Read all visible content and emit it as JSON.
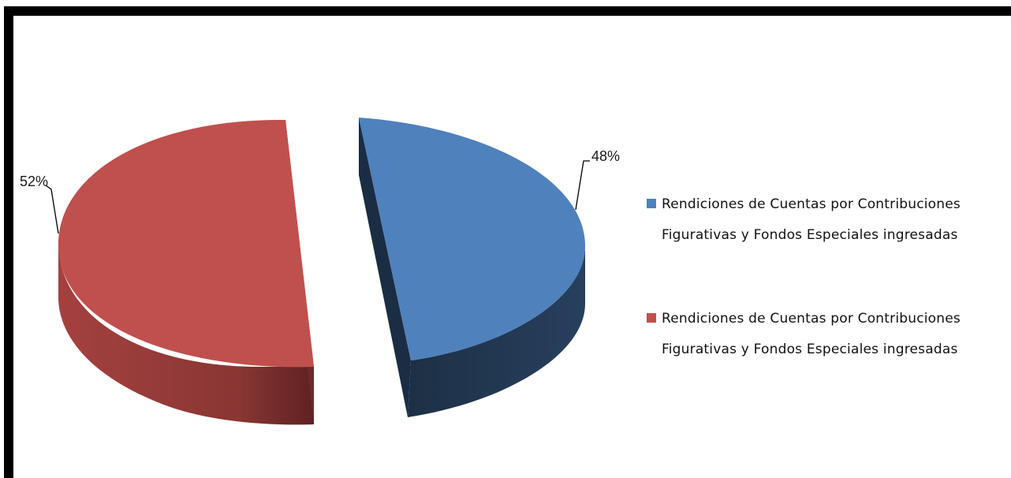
{
  "chart_data": {
    "type": "pie",
    "style": "3d-exploded",
    "slices": [
      {
        "label": "Rendiciones de Cuentas por Contribuciones Figurativas y Fondos Especiales ingresadas",
        "value": 48,
        "value_label": "48%",
        "color": "#4F81BD",
        "side_color": "#243850"
      },
      {
        "label": "Rendiciones de Cuentas por Contribuciones Figurativas y Fondos Especiales ingresadas",
        "value": 52,
        "value_label": "52%",
        "color": "#C0504D",
        "side_color": "#7A2F2D"
      }
    ],
    "legend": {
      "placement": "right",
      "items": [
        {
          "line1": "Rendiciones de Cuentas por Contribuciones",
          "line2": "Figurativas y Fondos Especiales ingresadas",
          "color": "#4F81BD"
        },
        {
          "line1": "Rendiciones de Cuentas por Contribuciones",
          "line2": "Figurativas y Fondos Especiales ingresadas",
          "color": "#C0504D"
        }
      ]
    }
  }
}
